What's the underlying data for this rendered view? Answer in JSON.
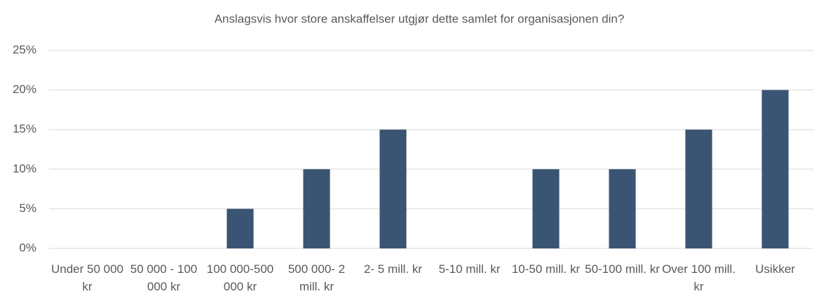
{
  "chart_data": {
    "type": "bar",
    "title": "Anslagsvis hvor store anskaffelser utgjør dette samlet for organisasjonen din?",
    "categories": [
      "Under 50 000 kr",
      "50 000 - 100 000 kr",
      "100 000-500 000 kr",
      "500 000- 2 mill. kr",
      "2- 5 mill. kr",
      "5-10 mill. kr",
      "10-50 mill. kr",
      "50-100 mill. kr",
      "Over 100 mill. kr",
      "Usikker"
    ],
    "values": [
      0,
      0,
      5,
      10,
      15,
      0,
      10,
      10,
      15,
      20
    ],
    "color": "#3a5573",
    "ylim": [
      0,
      25
    ],
    "yticks": [
      {
        "value": 0,
        "label": "0%"
      },
      {
        "value": 5,
        "label": "5%"
      },
      {
        "value": 10,
        "label": "10%"
      },
      {
        "value": 15,
        "label": "15%"
      },
      {
        "value": 20,
        "label": "20%"
      },
      {
        "value": 25,
        "label": "25%"
      }
    ],
    "grid": true
  }
}
